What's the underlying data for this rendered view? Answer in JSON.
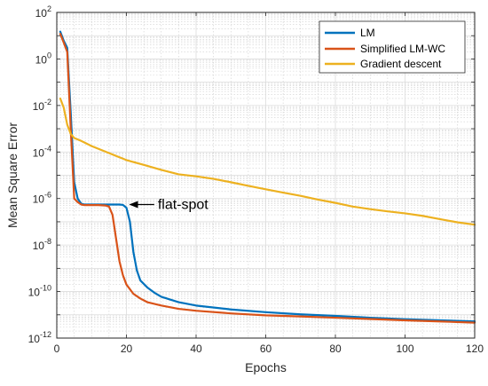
{
  "chart_data": {
    "type": "line",
    "xlabel": "Epochs",
    "ylabel": "Mean Square Error",
    "xlim": [
      0,
      120
    ],
    "ylim": [
      1e-12,
      100
    ],
    "yscale": "log",
    "grid": true,
    "minor_grid": true,
    "legend_position": "top-right",
    "x_ticks": [
      "0",
      "20",
      "40",
      "60",
      "80",
      "100",
      "120"
    ],
    "y_ticks": [
      {
        "base": "10",
        "exp": "-12",
        "value": 1e-12
      },
      {
        "base": "10",
        "exp": "-10",
        "value": 1e-10
      },
      {
        "base": "10",
        "exp": "-8",
        "value": 1e-08
      },
      {
        "base": "10",
        "exp": "-6",
        "value": 1e-06
      },
      {
        "base": "10",
        "exp": "-4",
        "value": 0.0001
      },
      {
        "base": "10",
        "exp": "-2",
        "value": 0.01
      },
      {
        "base": "10",
        "exp": "0",
        "value": 1
      },
      {
        "base": "10",
        "exp": "2",
        "value": 100
      }
    ],
    "series": [
      {
        "name": "LM",
        "color": "#0072BD",
        "points": [
          [
            1,
            15
          ],
          [
            2,
            6
          ],
          [
            3,
            3
          ],
          [
            4,
            0.005
          ],
          [
            5,
            5e-06
          ],
          [
            6,
            1e-06
          ],
          [
            7,
            6e-07
          ],
          [
            8,
            5.5e-07
          ],
          [
            10,
            5.5e-07
          ],
          [
            12,
            5.5e-07
          ],
          [
            14,
            5.5e-07
          ],
          [
            16,
            5.5e-07
          ],
          [
            18,
            5.5e-07
          ],
          [
            19,
            5.3e-07
          ],
          [
            20,
            4e-07
          ],
          [
            21,
            1e-07
          ],
          [
            22,
            5e-09
          ],
          [
            23,
            8e-10
          ],
          [
            24,
            3e-10
          ],
          [
            26,
            1.5e-10
          ],
          [
            28,
            9e-11
          ],
          [
            30,
            6e-11
          ],
          [
            35,
            3.5e-11
          ],
          [
            40,
            2.5e-11
          ],
          [
            50,
            1.7e-11
          ],
          [
            60,
            1.3e-11
          ],
          [
            70,
            1.05e-11
          ],
          [
            80,
            9e-12
          ],
          [
            90,
            7.5e-12
          ],
          [
            100,
            6.5e-12
          ],
          [
            110,
            5.8e-12
          ],
          [
            120,
            5.2e-12
          ]
        ]
      },
      {
        "name": "Simplified LM-WC",
        "color": "#D95319",
        "points": [
          [
            1,
            12
          ],
          [
            2,
            5
          ],
          [
            3,
            2
          ],
          [
            4,
            0.001
          ],
          [
            5,
            1e-06
          ],
          [
            6,
            7e-07
          ],
          [
            7,
            5.5e-07
          ],
          [
            8,
            5.2e-07
          ],
          [
            10,
            5.2e-07
          ],
          [
            12,
            5.2e-07
          ],
          [
            14,
            5e-07
          ],
          [
            15,
            4.5e-07
          ],
          [
            16,
            2e-07
          ],
          [
            17,
            2e-08
          ],
          [
            18,
            2e-09
          ],
          [
            19,
            5e-10
          ],
          [
            20,
            2e-10
          ],
          [
            22,
            8e-11
          ],
          [
            24,
            5e-11
          ],
          [
            26,
            3.5e-11
          ],
          [
            30,
            2.5e-11
          ],
          [
            35,
            1.8e-11
          ],
          [
            40,
            1.5e-11
          ],
          [
            50,
            1.15e-11
          ],
          [
            60,
            9.5e-12
          ],
          [
            70,
            8.5e-12
          ],
          [
            80,
            7.5e-12
          ],
          [
            90,
            6.6e-12
          ],
          [
            100,
            5.8e-12
          ],
          [
            110,
            5.2e-12
          ],
          [
            120,
            4.6e-12
          ]
        ]
      },
      {
        "name": "Gradient descent",
        "color": "#EDB120",
        "points": [
          [
            1,
            0.02
          ],
          [
            2,
            0.008
          ],
          [
            3,
            0.0015
          ],
          [
            4,
            0.0006
          ],
          [
            5,
            0.0004
          ],
          [
            7,
            0.0003
          ],
          [
            10,
            0.00018
          ],
          [
            15,
            9e-05
          ],
          [
            20,
            4.5e-05
          ],
          [
            25,
            2.8e-05
          ],
          [
            30,
            1.7e-05
          ],
          [
            35,
            1.1e-05
          ],
          [
            40,
            9e-06
          ],
          [
            45,
            7e-06
          ],
          [
            50,
            5e-06
          ],
          [
            55,
            3.5e-06
          ],
          [
            60,
            2.5e-06
          ],
          [
            65,
            1.8e-06
          ],
          [
            70,
            1.3e-06
          ],
          [
            75,
            9e-07
          ],
          [
            80,
            6.5e-07
          ],
          [
            85,
            4.5e-07
          ],
          [
            90,
            3.5e-07
          ],
          [
            95,
            2.8e-07
          ],
          [
            100,
            2.3e-07
          ],
          [
            105,
            1.8e-07
          ],
          [
            110,
            1.3e-07
          ],
          [
            115,
            9.5e-08
          ],
          [
            120,
            7.5e-08
          ]
        ]
      }
    ],
    "annotation": {
      "text": "flat-spot",
      "arrow_to": [
        20,
        5.5e-07
      ],
      "text_at": [
        29,
        5.5e-07
      ]
    }
  }
}
